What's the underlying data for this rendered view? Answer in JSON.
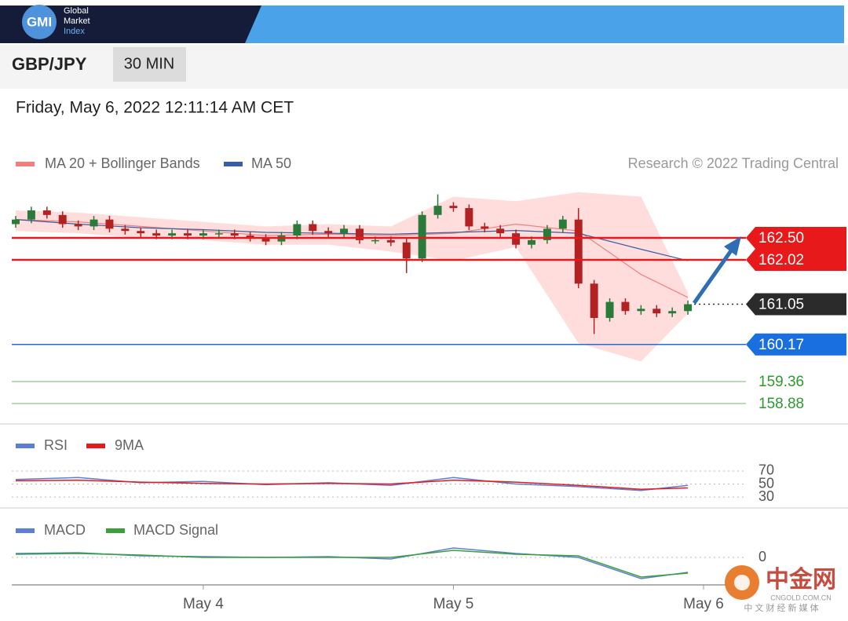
{
  "header": {
    "logo": "GMI",
    "brand": [
      "Global",
      "Market",
      "Index"
    ]
  },
  "symbol": "GBP/JPY",
  "timeframe": "30 MIN",
  "timestamp": "Friday, May 6, 2022 12:11:14 AM CET",
  "watermark": {
    "title": "中金网",
    "url": "CNGOLD.COM.CN",
    "tagline": "中 文 财 经 新 媒 体"
  },
  "chart_data": [
    {
      "type": "candlestick",
      "credit": "Research © 2022 Trading Central",
      "xlim": [
        0,
        44
      ],
      "ylim": [
        158.52,
        163.58
      ],
      "candles": {
        "up_color": "#2a7a3a",
        "down_color": "#b22222",
        "x": [
          0,
          1,
          2,
          3,
          4,
          5,
          6,
          7,
          8,
          9,
          10,
          11,
          12,
          13,
          14,
          15,
          16,
          17,
          18,
          19,
          20,
          21,
          22,
          23,
          24,
          25,
          26,
          27,
          28,
          29,
          30,
          31,
          32,
          33,
          34,
          35,
          36,
          37,
          38,
          39,
          40,
          41,
          42,
          43
        ],
        "open": [
          162.8,
          162.9,
          163.1,
          163.0,
          162.8,
          162.75,
          162.9,
          162.7,
          162.65,
          162.6,
          162.55,
          162.6,
          162.55,
          162.6,
          162.6,
          162.55,
          162.5,
          162.42,
          162.55,
          162.8,
          162.65,
          162.6,
          162.7,
          162.45,
          162.45,
          162.4,
          162.05,
          163.0,
          163.2,
          163.15,
          162.75,
          162.7,
          162.6,
          162.35,
          162.45,
          162.7,
          162.9,
          161.5,
          160.75,
          161.1,
          160.9,
          160.95,
          160.85,
          160.9
        ],
        "high": [
          162.98,
          163.18,
          163.18,
          163.08,
          162.88,
          162.98,
          162.98,
          162.78,
          162.73,
          162.68,
          162.68,
          162.68,
          162.68,
          162.68,
          162.68,
          162.63,
          162.58,
          162.63,
          162.88,
          162.88,
          162.73,
          162.78,
          162.78,
          162.53,
          162.53,
          162.48,
          163.08,
          163.45,
          163.28,
          163.23,
          162.83,
          162.78,
          162.68,
          162.53,
          162.78,
          162.98,
          163.15,
          161.58,
          161.18,
          161.18,
          161.03,
          161.03,
          160.98,
          161.13
        ],
        "low": [
          162.72,
          162.82,
          162.92,
          162.72,
          162.67,
          162.67,
          162.62,
          162.57,
          162.52,
          162.47,
          162.47,
          162.47,
          162.47,
          162.52,
          162.47,
          162.42,
          162.34,
          162.34,
          162.47,
          162.57,
          162.52,
          162.52,
          162.37,
          162.37,
          162.32,
          161.73,
          161.97,
          162.92,
          163.07,
          162.67,
          162.62,
          162.52,
          162.27,
          162.27,
          162.37,
          162.62,
          161.4,
          160.4,
          160.67,
          160.82,
          160.82,
          160.77,
          160.77,
          160.82
        ],
        "close": [
          162.9,
          163.1,
          163.0,
          162.8,
          162.75,
          162.9,
          162.7,
          162.65,
          162.6,
          162.55,
          162.6,
          162.55,
          162.6,
          162.6,
          162.55,
          162.5,
          162.42,
          162.55,
          162.8,
          162.65,
          162.6,
          162.7,
          162.45,
          162.45,
          162.4,
          162.05,
          163.0,
          163.2,
          163.15,
          162.75,
          162.7,
          162.6,
          162.35,
          162.45,
          162.7,
          162.9,
          161.5,
          160.75,
          161.1,
          160.9,
          160.95,
          160.85,
          160.9,
          161.05
        ]
      },
      "series": [
        {
          "name": "MA 20 + Bollinger Bands",
          "color": "#f08080",
          "band_color": "#ffd2d2",
          "x": [
            0,
            4,
            8,
            12,
            16,
            20,
            24,
            28,
            32,
            36,
            40,
            43
          ],
          "values": [
            162.9,
            162.85,
            162.75,
            162.65,
            162.55,
            162.58,
            162.55,
            162.6,
            162.8,
            162.65,
            161.7,
            161.2
          ],
          "upper": [
            163.1,
            163.05,
            162.95,
            162.85,
            162.75,
            162.8,
            162.75,
            163.4,
            163.3,
            163.5,
            163.4,
            161.3
          ],
          "lower": [
            162.65,
            162.6,
            162.5,
            162.45,
            162.35,
            162.35,
            162.2,
            162.0,
            162.3,
            160.2,
            159.8,
            160.85
          ]
        },
        {
          "name": "MA 50",
          "color": "#3a5fa0",
          "x": [
            0,
            4,
            8,
            12,
            16,
            20,
            24,
            28,
            32,
            36,
            40,
            43
          ],
          "values": [
            162.9,
            162.8,
            162.72,
            162.68,
            162.62,
            162.6,
            162.58,
            162.62,
            162.66,
            162.6,
            162.25,
            162.0
          ]
        }
      ],
      "levels": [
        {
          "value": 162.5,
          "label": "162.50",
          "color": "#e8191b",
          "style": "box",
          "line": "solid"
        },
        {
          "value": 162.02,
          "label": "162.02",
          "color": "#e8191b",
          "style": "box",
          "line": "solid"
        },
        {
          "value": 161.05,
          "label": "161.05",
          "color": "#2b2b2b",
          "style": "box",
          "line": "dotted"
        },
        {
          "value": 160.17,
          "label": "160.17",
          "color": "#1a6fe0",
          "style": "box",
          "line": "solid"
        },
        {
          "value": 159.36,
          "label": "159.36",
          "color": "#2e9a2e",
          "style": "text",
          "line": "solid"
        },
        {
          "value": 158.88,
          "label": "158.88",
          "color": "#2e9a2e",
          "style": "text",
          "line": "solid"
        }
      ]
    },
    {
      "type": "line",
      "xlim": [
        0,
        44
      ],
      "ylim": [
        18,
        84.5
      ],
      "yticks": [
        30,
        50,
        70
      ],
      "grid": true,
      "series": [
        {
          "name": "RSI",
          "color": "#5b7fd6",
          "x": [
            0,
            4,
            8,
            12,
            16,
            20,
            24,
            28,
            32,
            36,
            40,
            43
          ],
          "values": [
            57,
            60,
            52,
            54,
            49,
            52,
            48,
            60,
            50,
            46,
            40,
            48
          ]
        },
        {
          "name": "9MA",
          "color": "#e8191b",
          "x": [
            0,
            4,
            8,
            12,
            16,
            20,
            24,
            28,
            32,
            36,
            40,
            43
          ],
          "values": [
            55,
            56,
            53,
            51,
            50,
            51,
            50,
            56,
            53,
            48,
            42,
            44
          ]
        }
      ]
    },
    {
      "type": "line",
      "xlim": [
        0,
        44
      ],
      "ylim": [
        -0.35,
        0.2
      ],
      "yticks": [
        0
      ],
      "grid": true,
      "xticks": [
        {
          "value": 12,
          "label": "May 4"
        },
        {
          "value": 28,
          "label": "May 5"
        },
        {
          "value": 44,
          "label": "May 6"
        }
      ],
      "series": [
        {
          "name": "MACD",
          "color": "#5b7fd6",
          "x": [
            0,
            4,
            8,
            12,
            16,
            20,
            24,
            28,
            32,
            36,
            40,
            43
          ],
          "values": [
            0.05,
            0.06,
            0.02,
            0.01,
            0.0,
            0.01,
            -0.02,
            0.12,
            0.05,
            0.0,
            -0.27,
            -0.19
          ]
        },
        {
          "name": "MACD Signal",
          "color": "#3aa03a",
          "x": [
            0,
            4,
            8,
            12,
            16,
            20,
            24,
            28,
            32,
            36,
            40,
            43
          ],
          "values": [
            0.04,
            0.05,
            0.03,
            0.0,
            0.0,
            0.0,
            0.0,
            0.09,
            0.04,
            0.02,
            -0.25,
            -0.2
          ]
        }
      ]
    }
  ]
}
